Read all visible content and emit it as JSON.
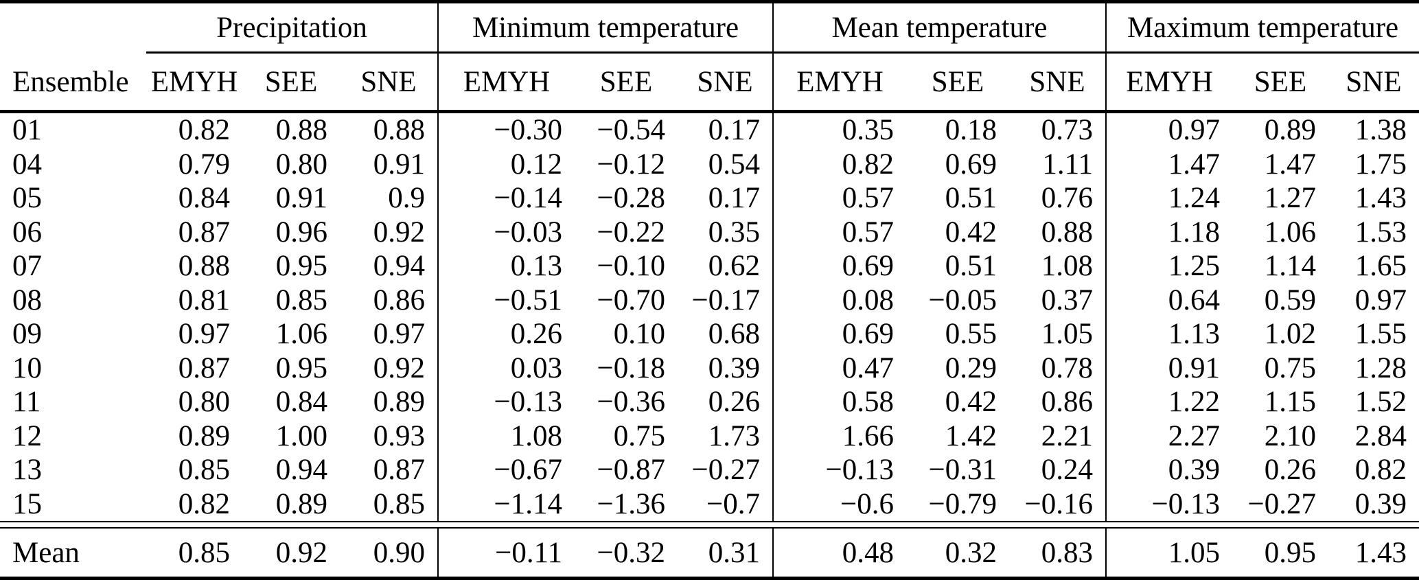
{
  "colors": {
    "background": "#ffffff",
    "text": "#000000",
    "rule": "#000000"
  },
  "table": {
    "row_header_label": "Ensemble",
    "groups": [
      {
        "label": "Precipitation"
      },
      {
        "label": "Minimum temperature"
      },
      {
        "label": "Mean temperature"
      },
      {
        "label": "Maximum temperature"
      }
    ],
    "sub_columns": [
      "EMYH",
      "SEE",
      "SNE"
    ],
    "rows": [
      {
        "ensemble": "01",
        "values": [
          "0.82",
          "0.88",
          "0.88",
          "−0.30",
          "−0.54",
          "0.17",
          "0.35",
          "0.18",
          "0.73",
          "0.97",
          "0.89",
          "1.38"
        ]
      },
      {
        "ensemble": "04",
        "values": [
          "0.79",
          "0.80",
          "0.91",
          "0.12",
          "−0.12",
          "0.54",
          "0.82",
          "0.69",
          "1.11",
          "1.47",
          "1.47",
          "1.75"
        ]
      },
      {
        "ensemble": "05",
        "values": [
          "0.84",
          "0.91",
          "0.9",
          "−0.14",
          "−0.28",
          "0.17",
          "0.57",
          "0.51",
          "0.76",
          "1.24",
          "1.27",
          "1.43"
        ]
      },
      {
        "ensemble": "06",
        "values": [
          "0.87",
          "0.96",
          "0.92",
          "−0.03",
          "−0.22",
          "0.35",
          "0.57",
          "0.42",
          "0.88",
          "1.18",
          "1.06",
          "1.53"
        ]
      },
      {
        "ensemble": "07",
        "values": [
          "0.88",
          "0.95",
          "0.94",
          "0.13",
          "−0.10",
          "0.62",
          "0.69",
          "0.51",
          "1.08",
          "1.25",
          "1.14",
          "1.65"
        ]
      },
      {
        "ensemble": "08",
        "values": [
          "0.81",
          "0.85",
          "0.86",
          "−0.51",
          "−0.70",
          "−0.17",
          "0.08",
          "−0.05",
          "0.37",
          "0.64",
          "0.59",
          "0.97"
        ]
      },
      {
        "ensemble": "09",
        "values": [
          "0.97",
          "1.06",
          "0.97",
          "0.26",
          "0.10",
          "0.68",
          "0.69",
          "0.55",
          "1.05",
          "1.13",
          "1.02",
          "1.55"
        ]
      },
      {
        "ensemble": "10",
        "values": [
          "0.87",
          "0.95",
          "0.92",
          "0.03",
          "−0.18",
          "0.39",
          "0.47",
          "0.29",
          "0.78",
          "0.91",
          "0.75",
          "1.28"
        ]
      },
      {
        "ensemble": "11",
        "values": [
          "0.80",
          "0.84",
          "0.89",
          "−0.13",
          "−0.36",
          "0.26",
          "0.58",
          "0.42",
          "0.86",
          "1.22",
          "1.15",
          "1.52"
        ]
      },
      {
        "ensemble": "12",
        "values": [
          "0.89",
          "1.00",
          "0.93",
          "1.08",
          "0.75",
          "1.73",
          "1.66",
          "1.42",
          "2.21",
          "2.27",
          "2.10",
          "2.84"
        ]
      },
      {
        "ensemble": "13",
        "values": [
          "0.85",
          "0.94",
          "0.87",
          "−0.67",
          "−0.87",
          "−0.27",
          "−0.13",
          "−0.31",
          "0.24",
          "0.39",
          "0.26",
          "0.82"
        ]
      },
      {
        "ensemble": "15",
        "values": [
          "0.82",
          "0.89",
          "0.85",
          "−1.14",
          "−1.36",
          "−0.7",
          "−0.6",
          "−0.79",
          "−0.16",
          "−0.13",
          "−0.27",
          "0.39"
        ]
      }
    ],
    "mean_row": {
      "label": "Mean",
      "values": [
        "0.85",
        "0.92",
        "0.90",
        "−0.11",
        "−0.32",
        "0.31",
        "0.48",
        "0.32",
        "0.83",
        "1.05",
        "0.95",
        "1.43"
      ]
    }
  }
}
